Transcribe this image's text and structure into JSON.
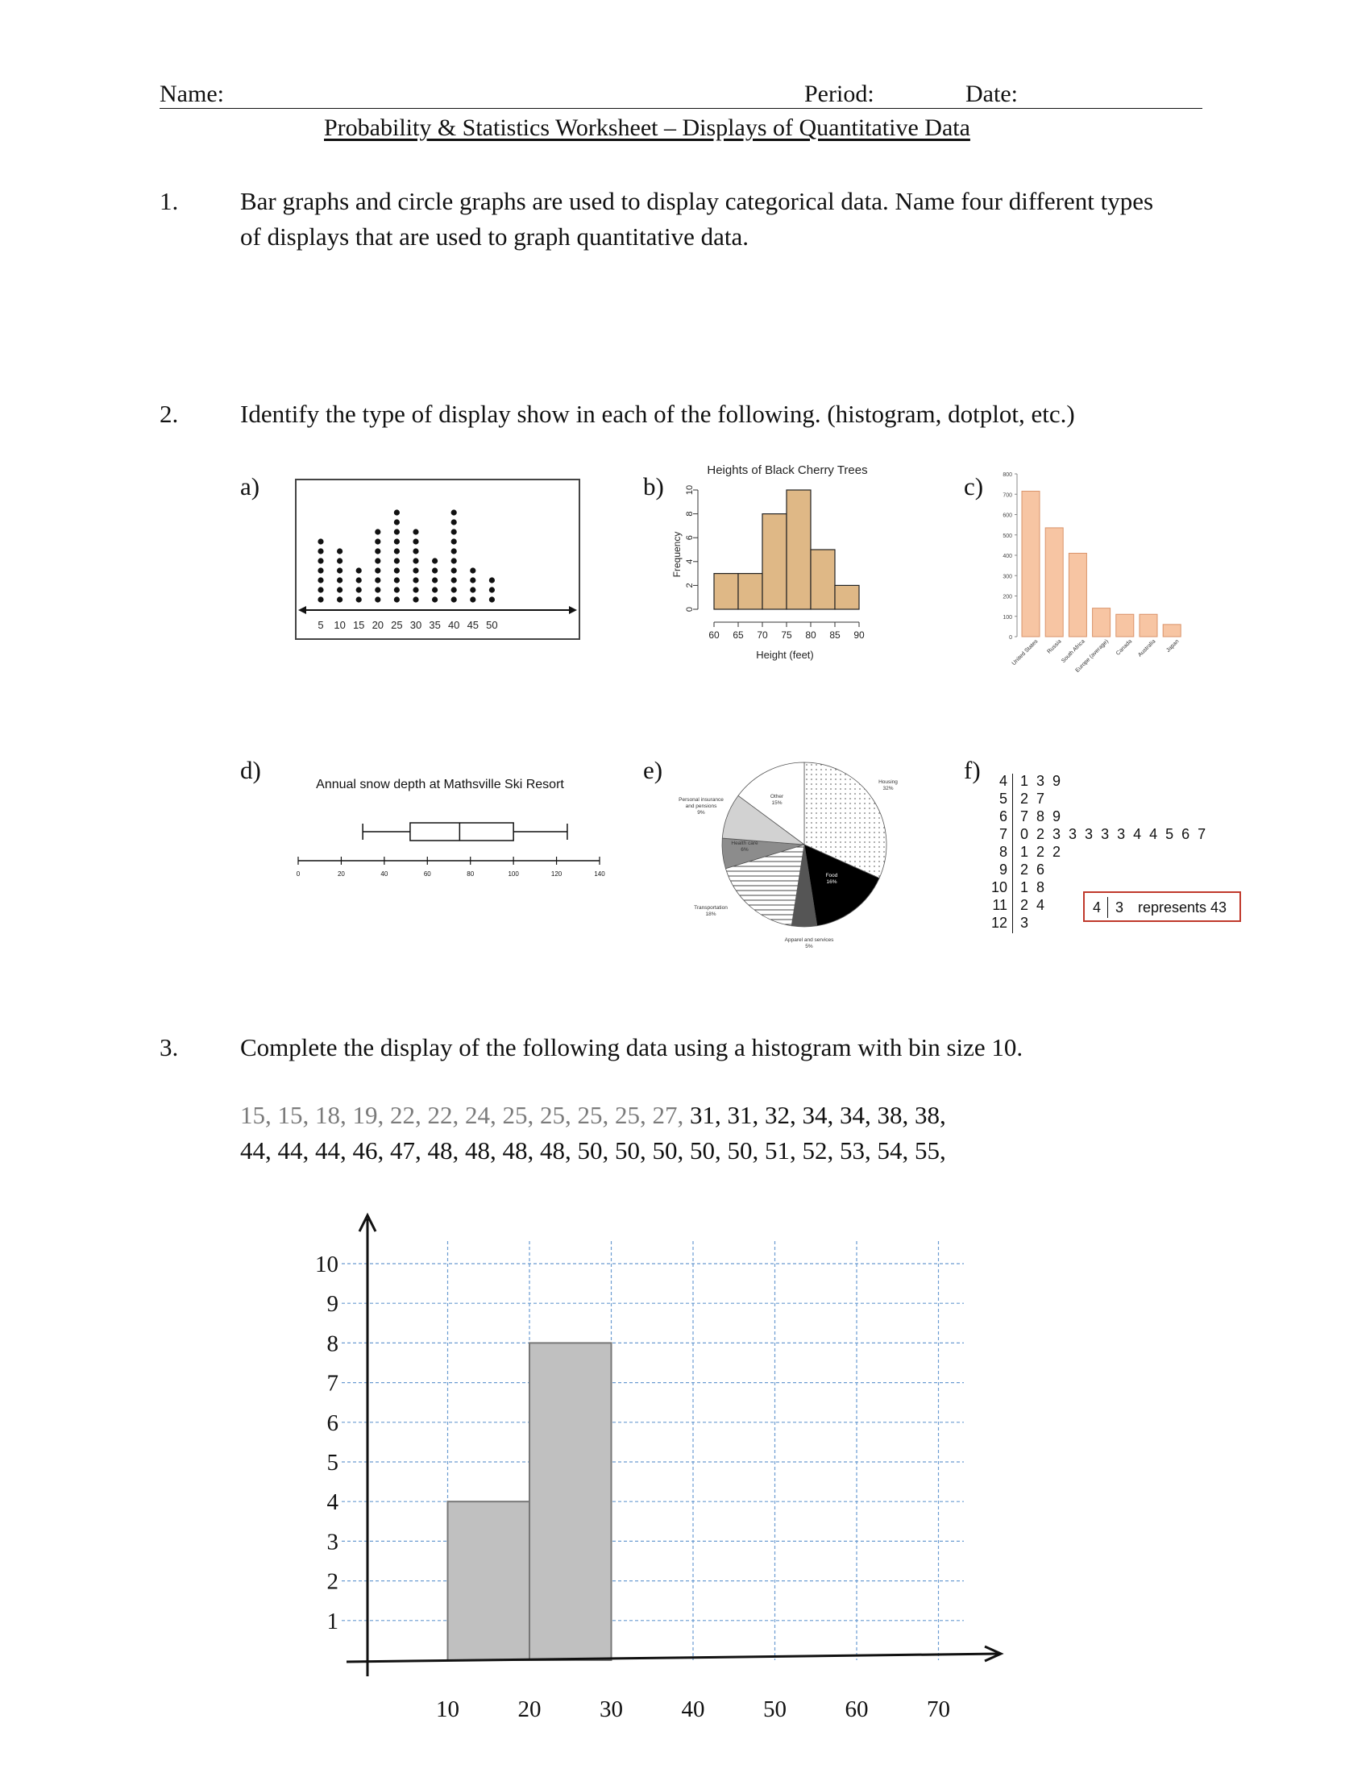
{
  "header": {
    "name_label": "Name:",
    "period_label": "Period:",
    "date_label": "Date:",
    "title": "Probability & Statistics Worksheet – Displays of Quantitative Data"
  },
  "questions": [
    {
      "number": "1.",
      "text": "Bar graphs and circle graphs are used to display categorical data.  Name four different types of displays that are used to graph quantitative data."
    },
    {
      "number": "2.",
      "text": "Identify the type of display show in each of the following.  (histogram, dotplot, etc.)"
    },
    {
      "number": "3.",
      "text": "Complete the display of the following data using a histogram with bin size 10."
    }
  ],
  "q3_data": {
    "given": "15, 15, 18, 19, 22, 22, 24, 25, 25, 25, 25, 27,",
    "remaining_line1": " 31, 31, 32, 34, 34, 38, 38,",
    "line2": "44, 44, 44, 46, 47, 48, 48, 48, 48, 50, 50, 50, 50, 50, 51, 52, 53, 54, 55,"
  },
  "displays": {
    "a": {
      "label": "a)",
      "chart_data": {
        "type": "dotplot",
        "x": [
          5,
          10,
          15,
          20,
          25,
          30,
          35,
          40,
          45,
          50
        ],
        "counts": [
          7,
          6,
          4,
          8,
          10,
          8,
          5,
          10,
          4,
          3
        ],
        "tick_labels": [
          "5",
          "10",
          "15",
          "20",
          "25",
          "30",
          "35",
          "40",
          "45",
          "50"
        ]
      }
    },
    "b": {
      "label": "b)",
      "chart_data": {
        "type": "bar",
        "title": "Heights of Black Cherry Trees",
        "xlabel": "Height (feet)",
        "ylabel": "Frequency",
        "bin_edges": [
          60,
          65,
          70,
          75,
          80,
          85,
          90
        ],
        "values": [
          3,
          3,
          8,
          10,
          5,
          2
        ],
        "x_ticks": [
          "60",
          "65",
          "70",
          "75",
          "80",
          "85",
          "90"
        ],
        "y_ticks": [
          "0",
          "2",
          "4",
          "6",
          "8",
          "10"
        ],
        "ylim": [
          0,
          10
        ],
        "color": "#dfb886"
      }
    },
    "c": {
      "label": "c)",
      "chart_data": {
        "type": "bar",
        "categories": [
          "United States",
          "Russia",
          "South Africa",
          "Europe (average)",
          "Canada",
          "Australia",
          "Japan"
        ],
        "values": [
          715,
          535,
          410,
          140,
          110,
          110,
          60
        ],
        "y_ticks": [
          "0",
          "100",
          "200",
          "300",
          "400",
          "500",
          "600",
          "700",
          "800"
        ],
        "ylim": [
          0,
          800
        ],
        "color": "#f7c5a3"
      }
    },
    "d": {
      "label": "d)",
      "chart_data": {
        "type": "boxplot",
        "title": "Annual snow depth at Mathsville Ski Resort",
        "min": 30,
        "q1": 52,
        "median": 75,
        "q3": 100,
        "max": 125,
        "x_ticks": [
          "0",
          "20",
          "40",
          "60",
          "80",
          "100",
          "120",
          "140"
        ],
        "xlim": [
          0,
          140
        ]
      }
    },
    "e": {
      "label": "e)",
      "chart_data": {
        "type": "pie",
        "slices": [
          {
            "label": "Housing",
            "pct_label": "32%",
            "value": 32,
            "fill": "dots"
          },
          {
            "label": "Food",
            "pct_label": "16%",
            "value": 16,
            "fill": "#000000"
          },
          {
            "label": "Apparel and services",
            "pct_label": "5%",
            "value": 5,
            "fill": "#555555"
          },
          {
            "label": "Transportation",
            "pct_label": "18%",
            "value": 18,
            "fill": "stripes"
          },
          {
            "label": "Health care",
            "pct_label": "6%",
            "value": 6,
            "fill": "#8c8c8c"
          },
          {
            "label": "Personal insurance and pensions",
            "pct_label": "9%",
            "value": 9,
            "fill": "#d2d2d2"
          },
          {
            "label": "Other",
            "pct_label": "15%",
            "value": 15,
            "fill": "#ffffff"
          }
        ]
      }
    },
    "f": {
      "label": "f)",
      "stems": [
        "4",
        "5",
        "6",
        "7",
        "8",
        "9",
        "10",
        "11",
        "12"
      ],
      "leaves": [
        "1  3  9",
        "2  7",
        "7  8  9",
        "0  2  3  3  3  3  3  4  4  5  6  7",
        "1  2  2",
        "2  6",
        "1  8",
        "2  4",
        "3"
      ],
      "key_stem": "4",
      "key_leaf": "3",
      "key_text": "represents 43",
      "key_color": "#c0392b"
    }
  },
  "histogram": {
    "chart_data": {
      "type": "bar",
      "bin_edges": [
        10,
        20,
        30
      ],
      "values": [
        4,
        8
      ],
      "x_ticks": [
        "10",
        "20",
        "30",
        "40",
        "50",
        "60",
        "70"
      ],
      "y_ticks": [
        "1",
        "2",
        "3",
        "4",
        "5",
        "6",
        "7",
        "8",
        "9",
        "10"
      ],
      "ylim": [
        0,
        10
      ],
      "xlim": [
        0,
        70
      ],
      "grid": true,
      "bar_color": "#c0c0c0",
      "grid_color": "#6a9bd1"
    }
  }
}
